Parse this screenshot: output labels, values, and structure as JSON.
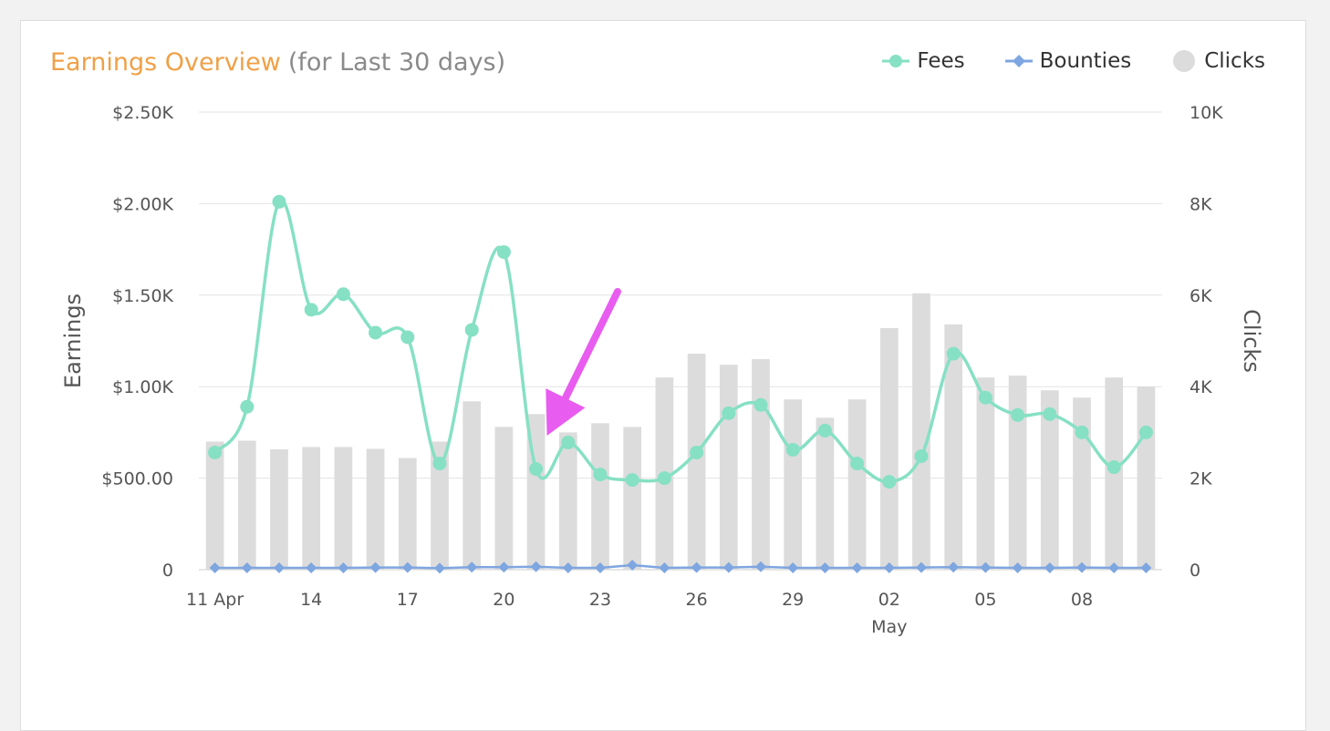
{
  "header": {
    "title": "Earnings Overview",
    "subtitle": "(for Last 30 days)"
  },
  "legend": {
    "items": [
      {
        "label": "Fees",
        "marker": "circle-line",
        "color": "#86e0c4"
      },
      {
        "label": "Bounties",
        "marker": "diamond-line",
        "color": "#7ea6e0"
      },
      {
        "label": "Clicks",
        "marker": "circle",
        "color": "#dcdcdc"
      }
    ]
  },
  "chart_data": {
    "type": "line",
    "title": "Earnings Overview",
    "subtitle": "(for Last 30 days)",
    "x_ticks": [
      {
        "index": 0,
        "label": "11 Apr"
      },
      {
        "index": 3,
        "label": "14"
      },
      {
        "index": 6,
        "label": "17"
      },
      {
        "index": 9,
        "label": "20"
      },
      {
        "index": 12,
        "label": "23"
      },
      {
        "index": 15,
        "label": "26"
      },
      {
        "index": 18,
        "label": "29"
      },
      {
        "index": 21,
        "label": "02",
        "sublabel": "May"
      },
      {
        "index": 24,
        "label": "05"
      },
      {
        "index": 27,
        "label": "08"
      }
    ],
    "x": [
      "11 Apr",
      "12 Apr",
      "13 Apr",
      "14 Apr",
      "15 Apr",
      "16 Apr",
      "17 Apr",
      "18 Apr",
      "19 Apr",
      "20 Apr",
      "21 Apr",
      "22 Apr",
      "23 Apr",
      "24 Apr",
      "25 Apr",
      "26 Apr",
      "27 Apr",
      "28 Apr",
      "29 Apr",
      "30 Apr",
      "01 May",
      "02 May",
      "03 May",
      "04 May",
      "05 May",
      "06 May",
      "07 May",
      "08 May",
      "09 May",
      "10 May"
    ],
    "left_axis": {
      "label": "Earnings",
      "range": [
        0,
        2500
      ],
      "tick_labels": [
        "0",
        "$500.00",
        "$1.00K",
        "$1.50K",
        "$2.00K",
        "$2.50K"
      ]
    },
    "right_axis": {
      "label": "Clicks",
      "range": [
        0,
        10000
      ],
      "tick_labels": [
        "0",
        "2K",
        "4K",
        "6K",
        "8K",
        "10K"
      ]
    },
    "grid": true,
    "legend_position": "top-right",
    "series": [
      {
        "name": "Fees",
        "type": "spline",
        "axis": "left",
        "color": "#86e0c4",
        "values": [
          640,
          890,
          2010,
          1420,
          1505,
          1295,
          1270,
          580,
          1310,
          1735,
          550,
          695,
          520,
          490,
          500,
          640,
          855,
          900,
          655,
          760,
          580,
          480,
          620,
          1180,
          940,
          845,
          850,
          750,
          560,
          750
        ]
      },
      {
        "name": "Bounties",
        "type": "line",
        "axis": "left",
        "color": "#7ea6e0",
        "values": [
          10,
          10,
          10,
          10,
          10,
          12,
          12,
          8,
          14,
          14,
          16,
          10,
          10,
          25,
          10,
          12,
          12,
          16,
          10,
          10,
          10,
          10,
          12,
          14,
          12,
          10,
          10,
          12,
          10,
          10
        ]
      },
      {
        "name": "Clicks",
        "type": "bar",
        "axis": "right",
        "color": "#dcdcdc",
        "values": [
          2800,
          2820,
          2630,
          2680,
          2680,
          2640,
          2440,
          2800,
          3680,
          3120,
          3400,
          3000,
          3200,
          3120,
          4200,
          4720,
          4480,
          4600,
          3720,
          3320,
          3720,
          5280,
          6040,
          5360,
          4200,
          4240,
          3920,
          3760,
          4200,
          4000
        ]
      }
    ],
    "annotation": {
      "type": "arrow",
      "color": "#e85cf0",
      "points_to_index": 10
    }
  }
}
